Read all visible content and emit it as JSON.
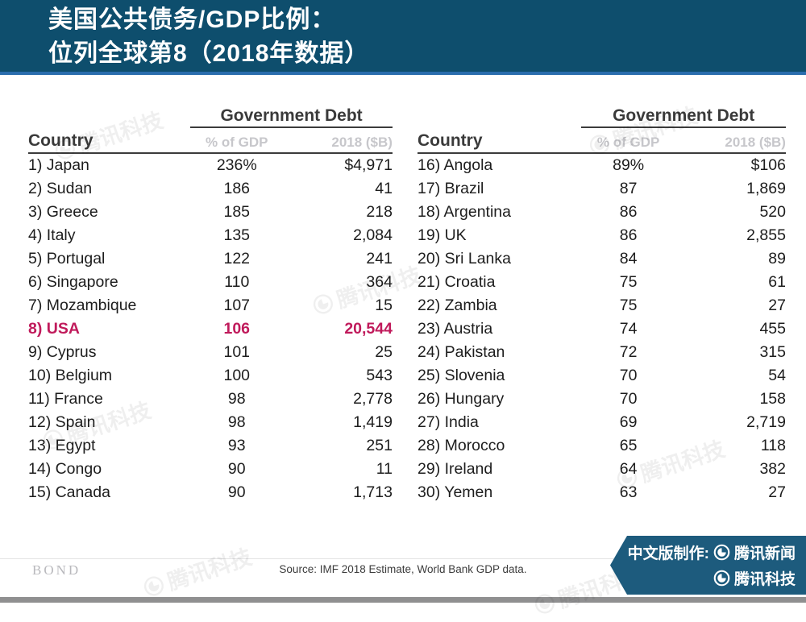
{
  "header": {
    "title_line1": "美国公共债务/GDP比例：",
    "title_line2": "位列全球第8（2018年数据）"
  },
  "columns": {
    "country": "Country",
    "group": "Government Debt",
    "gdp": "% of GDP",
    "debt": "2018 ($B)"
  },
  "tables": [
    {
      "rows": [
        {
          "rank": "1)",
          "country": "Japan",
          "gdp": "236%",
          "debt": "$4,971",
          "highlight": false
        },
        {
          "rank": "2)",
          "country": "Sudan",
          "gdp": "186",
          "debt": "41",
          "highlight": false
        },
        {
          "rank": "3)",
          "country": "Greece",
          "gdp": "185",
          "debt": "218",
          "highlight": false
        },
        {
          "rank": "4)",
          "country": "Italy",
          "gdp": "135",
          "debt": "2,084",
          "highlight": false
        },
        {
          "rank": "5)",
          "country": "Portugal",
          "gdp": "122",
          "debt": "241",
          "highlight": false
        },
        {
          "rank": "6)",
          "country": "Singapore",
          "gdp": "110",
          "debt": "364",
          "highlight": false
        },
        {
          "rank": "7)",
          "country": "Mozambique",
          "gdp": "107",
          "debt": "15",
          "highlight": false
        },
        {
          "rank": "8)",
          "country": "USA",
          "gdp": "106",
          "debt": "20,544",
          "highlight": true
        },
        {
          "rank": "9)",
          "country": "Cyprus",
          "gdp": "101",
          "debt": "25",
          "highlight": false
        },
        {
          "rank": "10)",
          "country": "Belgium",
          "gdp": "100",
          "debt": "543",
          "highlight": false
        },
        {
          "rank": "11)",
          "country": "France",
          "gdp": "98",
          "debt": "2,778",
          "highlight": false
        },
        {
          "rank": "12)",
          "country": "Spain",
          "gdp": "98",
          "debt": "1,419",
          "highlight": false
        },
        {
          "rank": "13)",
          "country": "Egypt",
          "gdp": "93",
          "debt": "251",
          "highlight": false
        },
        {
          "rank": "14)",
          "country": "Congo",
          "gdp": "90",
          "debt": "11",
          "highlight": false
        },
        {
          "rank": "15)",
          "country": "Canada",
          "gdp": "90",
          "debt": "1,713",
          "highlight": false
        }
      ]
    },
    {
      "rows": [
        {
          "rank": "16)",
          "country": "Angola",
          "gdp": "89%",
          "debt": "$106",
          "highlight": false
        },
        {
          "rank": "17)",
          "country": "Brazil",
          "gdp": "87",
          "debt": "1,869",
          "highlight": false
        },
        {
          "rank": "18)",
          "country": "Argentina",
          "gdp": "86",
          "debt": "520",
          "highlight": false
        },
        {
          "rank": "19)",
          "country": "UK",
          "gdp": "86",
          "debt": "2,855",
          "highlight": false
        },
        {
          "rank": "20)",
          "country": "Sri Lanka",
          "gdp": "84",
          "debt": "89",
          "highlight": false
        },
        {
          "rank": "21)",
          "country": "Croatia",
          "gdp": "75",
          "debt": "61",
          "highlight": false
        },
        {
          "rank": "22)",
          "country": "Zambia",
          "gdp": "75",
          "debt": "27",
          "highlight": false
        },
        {
          "rank": "23)",
          "country": "Austria",
          "gdp": "74",
          "debt": "455",
          "highlight": false
        },
        {
          "rank": "24)",
          "country": "Pakistan",
          "gdp": "72",
          "debt": "315",
          "highlight": false
        },
        {
          "rank": "25)",
          "country": "Slovenia",
          "gdp": "70",
          "debt": "54",
          "highlight": false
        },
        {
          "rank": "26)",
          "country": "Hungary",
          "gdp": "70",
          "debt": "158",
          "highlight": false
        },
        {
          "rank": "27)",
          "country": "India",
          "gdp": "69",
          "debt": "2,719",
          "highlight": false
        },
        {
          "rank": "28)",
          "country": "Morocco",
          "gdp": "65",
          "debt": "118",
          "highlight": false
        },
        {
          "rank": "29)",
          "country": "Ireland",
          "gdp": "64",
          "debt": "382",
          "highlight": false
        },
        {
          "rank": "30)",
          "country": "Yemen",
          "gdp": "63",
          "debt": "27",
          "highlight": false
        }
      ]
    }
  ],
  "chart_data": {
    "type": "table",
    "title": "美国公共债务/GDP比例：位列全球第8（2018年数据）",
    "columns": [
      "Country",
      "% of GDP",
      "2018 ($B)"
    ],
    "rows": [
      [
        "1) Japan",
        236,
        4971
      ],
      [
        "2) Sudan",
        186,
        41
      ],
      [
        "3) Greece",
        185,
        218
      ],
      [
        "4) Italy",
        135,
        2084
      ],
      [
        "5) Portugal",
        122,
        241
      ],
      [
        "6) Singapore",
        110,
        364
      ],
      [
        "7) Mozambique",
        107,
        15
      ],
      [
        "8) USA",
        106,
        20544
      ],
      [
        "9) Cyprus",
        101,
        25
      ],
      [
        "10) Belgium",
        100,
        543
      ],
      [
        "11) France",
        98,
        2778
      ],
      [
        "12) Spain",
        98,
        1419
      ],
      [
        "13) Egypt",
        93,
        251
      ],
      [
        "14) Congo",
        90,
        11
      ],
      [
        "15) Canada",
        90,
        1713
      ],
      [
        "16) Angola",
        89,
        106
      ],
      [
        "17) Brazil",
        87,
        1869
      ],
      [
        "18) Argentina",
        86,
        520
      ],
      [
        "19) UK",
        86,
        2855
      ],
      [
        "20) Sri Lanka",
        84,
        89
      ],
      [
        "21) Croatia",
        75,
        61
      ],
      [
        "22) Zambia",
        75,
        27
      ],
      [
        "23) Austria",
        74,
        455
      ],
      [
        "24) Pakistan",
        72,
        315
      ],
      [
        "25) Slovenia",
        70,
        54
      ],
      [
        "26) Hungary",
        70,
        158
      ],
      [
        "27) India",
        69,
        2719
      ],
      [
        "28) Morocco",
        65,
        118
      ],
      [
        "29) Ireland",
        64,
        382
      ],
      [
        "30) Yemen",
        63,
        27
      ]
    ],
    "highlight_row": "8) USA",
    "units": {
      "% of GDP": "percent",
      "2018 ($B)": "billions USD"
    },
    "source": "Source: IMF 2018 Estimate, World Bank GDP data."
  },
  "footer": {
    "bond_logo": "BOND",
    "source": "Source: IMF 2018 Estimate, World Bank GDP data.",
    "credit_label": "中文版制作:",
    "credit_news": "腾讯新闻",
    "credit_tech": "腾讯科技"
  },
  "watermark": {
    "text": "腾讯科技"
  },
  "colors": {
    "header_bg": "#0e4e6d",
    "header_border": "#2a6dad",
    "banner_bg": "#1d5b7d",
    "highlight": "#c01a5b",
    "table_line": "#3b3b3b",
    "subheader_gray": "#c7c7cb"
  }
}
